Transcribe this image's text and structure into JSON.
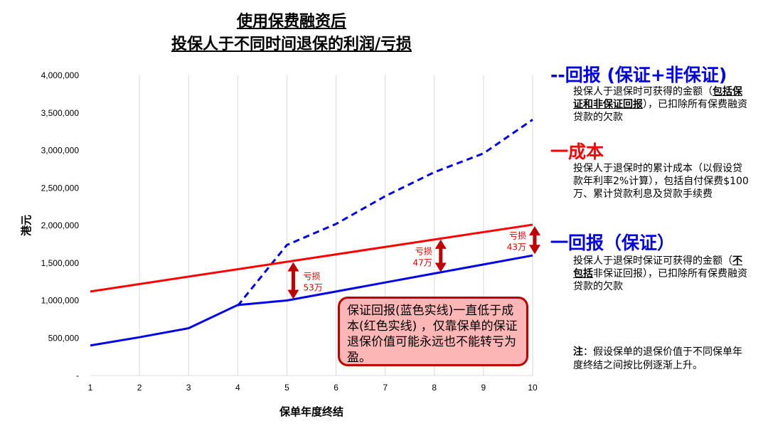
{
  "title_line1": "使用保费融资后",
  "title_line2": "投保人于不同时间退保的利润/亏损",
  "chart_data": {
    "type": "line",
    "xlabel": "保单年度终结",
    "ylabel": "港元",
    "categories": [
      1,
      2,
      3,
      4,
      5,
      6,
      7,
      8,
      9,
      10
    ],
    "ylim": [
      0,
      4000000
    ],
    "yticks": [
      "-",
      "500,000",
      "1,000,000",
      "1,500,000",
      "2,000,000",
      "2,500,000",
      "3,000,000",
      "3,500,000",
      "4,000,000"
    ],
    "grid": "vertical",
    "series": [
      {
        "name": "回报 (保证+非保证)",
        "color": "#0000e6",
        "dash": true,
        "x": [
          4,
          5,
          6,
          7,
          8,
          9,
          10
        ],
        "values": [
          930000,
          1740000,
          2020000,
          2390000,
          2710000,
          2960000,
          3410000
        ]
      },
      {
        "name": "成本",
        "color": "#ff0000",
        "dash": false,
        "x": [
          1,
          10
        ],
        "values": [
          1120000,
          2010000
        ]
      },
      {
        "name": "回报（保证）",
        "color": "#0000e6",
        "dash": false,
        "x": [
          1,
          2,
          3,
          4,
          5,
          6,
          7,
          8,
          9,
          10
        ],
        "values": [
          400000,
          510000,
          630000,
          940000,
          1000000,
          1120000,
          1240000,
          1360000,
          1480000,
          1600000
        ]
      }
    ],
    "gaps": [
      {
        "x": 5,
        "top": 1530000,
        "bottom": 1000000,
        "label1": "亏损",
        "label2": "53万"
      },
      {
        "x": 8,
        "top": 1830000,
        "bottom": 1360000,
        "label1": "亏损",
        "label2": "47万"
      },
      {
        "x": 10,
        "top": 2010000,
        "bottom": 1600000,
        "label1": "亏损",
        "label2": "43万"
      }
    ],
    "arrow_color": "#c00000"
  },
  "legend": {
    "nonguaranteed": {
      "prefix": "--",
      "label": "回报 (保证+非保证)",
      "color": "#0000e6",
      "desc_a": "投保人于退保时可获得的金额（",
      "desc_bold": "包括保证和非保证回报",
      "desc_b": "），已扣除所有保费融资贷款的欠款"
    },
    "cost": {
      "prefix": "一",
      "label": "成本",
      "color": "#ff0000",
      "desc": "投保人于退保时的累计成本（以假设贷款年利率2%计算），包括自付保费$100万、累计贷款利息及贷款手续费"
    },
    "guaranteed": {
      "prefix": "一",
      "label": "回报（保证）",
      "color": "#0000e6",
      "desc_a": "投保人于退保时保证可获得的金额（",
      "desc_bold": "不包括",
      "desc_b": "非保证回报），已扣除所有保费融资贷款的欠款"
    }
  },
  "annotation": "保证回报(蓝色实线)一直低于成本(红色实线) ，仅靠保单的保证退保价值可能永远也不能转亏为盈。",
  "note": {
    "bold": "注",
    "text": "：假设保单的退保价值于不同保单年度终结之间按比例逐渐上升。"
  }
}
